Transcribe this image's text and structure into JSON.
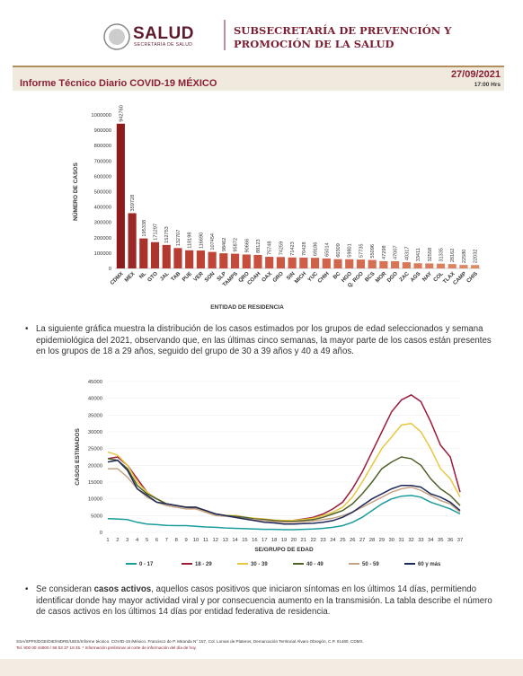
{
  "header": {
    "logo_title": "SALUD",
    "logo_subtitle": "SECRETARÍA DE SALUD",
    "agency": "SUBSECRETARÍA DE PREVENCIÓN Y PROMOCIÓN DE LA SALUD"
  },
  "banner": {
    "title": "Informe Técnico Diario COVID-19 MÉXICO",
    "date": "27/09/2021",
    "time": "17:00 Hrs"
  },
  "paragraph_1": "La siguiente gráfica muestra la distribución de los casos estimados por los grupos de edad seleccionados y semana epidemiológica del 2021, observando que, en las últimas cinco semanas, la mayor parte de los casos están presentes en los grupos de 18 a 29 años, seguido del grupo de 30 a 39 años y 40 a 49 años.",
  "paragraph_2": [
    "Se consideran ",
    "casos activos",
    ", aquellos casos positivos que iniciaron síntomas en los últimos 14 días, permitiendo identificar donde hay mayor actividad viral y por consecuencia aumento en la transmisión. La tabla describe el número de casos activos en los últimos 14 días por entidad federativa de residencia."
  ],
  "footer": [
    "SSA/SPPS/DGE/DIE/INDRE/UIES/Informe técnico. COVID-19 /México. Francisco de P. Miranda N° 157, Col. Lomas de Plateros, Demarcación Territorial Álvaro Obregón, C.P. 01480, CDMX.",
    "Tel. 800 00 44800 / 55 53 37 18 45. * Información preliminar al corte de información del día de hoy."
  ],
  "chart_data": [
    {
      "type": "bar",
      "y_label": "NÚMERO DE CASOS",
      "x_label": "ENTIDAD DE RESIDENCIA",
      "categories": [
        "CDMX",
        "MEX",
        "NL",
        "GTO",
        "JAL",
        "TAB",
        "PUE",
        "VER",
        "SON",
        "SLP",
        "TAMPS",
        "QRO",
        "COAH",
        "OAX",
        "GRO",
        "SIN",
        "MICH",
        "YUC",
        "CHIH",
        "BC",
        "HGO",
        "Q. ROO",
        "BCS",
        "MOR",
        "DGO",
        "ZAC",
        "AGS",
        "NAY",
        "COL",
        "TLAX",
        "CAMP",
        "CHIS"
      ],
      "values": [
        942760,
        359728,
        195338,
        171297,
        152753,
        132707,
        118198,
        116690,
        107454,
        98462,
        95872,
        90666,
        88123,
        75748,
        74259,
        71423,
        70428,
        69186,
        65014,
        60309,
        59801,
        57735,
        55096,
        47298,
        47007,
        40317,
        33411,
        32558,
        31335,
        28162,
        22580,
        22032
      ],
      "colors": [
        "#8e1b1b",
        "#9a2824",
        "#a9322b",
        "#ae352d",
        "#b3392f",
        "#b73c31",
        "#ba3f33",
        "#bd4235",
        "#c04537",
        "#c24839",
        "#c44b3b",
        "#c64e3d",
        "#c8513f",
        "#ca5441",
        "#cc5743",
        "#ce5a45",
        "#cf5d47",
        "#d06049",
        "#d1634b",
        "#d2664d",
        "#d3694f",
        "#d46c51",
        "#d56f53",
        "#d67255",
        "#d77557",
        "#d87859",
        "#d97b5b",
        "#da7e5d",
        "#db815f",
        "#dc8461",
        "#dd8763",
        "#de8a65"
      ],
      "ylim": [
        0,
        1000000
      ],
      "yticks": [
        0,
        100000,
        200000,
        300000,
        400000,
        500000,
        600000,
        700000,
        800000,
        900000,
        1000000
      ],
      "grid": false
    },
    {
      "type": "line",
      "y_label": "CASOS ESTIMADOS",
      "x_label": "SE/GRUPO DE EDAD",
      "x": [
        1,
        2,
        3,
        4,
        5,
        6,
        7,
        8,
        9,
        10,
        11,
        12,
        13,
        14,
        15,
        16,
        17,
        18,
        19,
        20,
        21,
        22,
        23,
        24,
        25,
        26,
        27,
        28,
        29,
        30,
        31,
        32,
        33,
        34,
        35,
        36,
        37
      ],
      "xlim": [
        1,
        37
      ],
      "xticks": [
        1,
        2,
        3,
        4,
        5,
        6,
        7,
        8,
        9,
        10,
        11,
        12,
        13,
        14,
        15,
        16,
        17,
        18,
        19,
        20,
        21,
        22,
        23,
        24,
        25,
        26,
        27,
        28,
        29,
        30,
        31,
        32,
        33,
        34,
        35,
        36,
        37
      ],
      "ylim": [
        0,
        45000
      ],
      "yticks": [
        0,
        5000,
        10000,
        15000,
        20000,
        25000,
        30000,
        35000,
        40000,
        45000
      ],
      "grid": true,
      "legend": "bottom",
      "series": [
        {
          "name": "0 - 17",
          "color": "#1a9c9c",
          "values": [
            4100,
            4000,
            3800,
            3000,
            2500,
            2300,
            2100,
            2000,
            2000,
            1800,
            1600,
            1500,
            1300,
            1200,
            1100,
            1000,
            900,
            900,
            800,
            800,
            900,
            1000,
            1200,
            1500,
            2000,
            3000,
            4500,
            6500,
            8500,
            10000,
            10800,
            11000,
            10500,
            9000,
            8000,
            7000,
            5500
          ]
        },
        {
          "name": "18 - 29",
          "color": "#9b1b3a",
          "values": [
            22000,
            22500,
            20000,
            16000,
            12000,
            10000,
            8500,
            8000,
            7500,
            7000,
            6500,
            5500,
            5000,
            5000,
            4500,
            4000,
            3800,
            3500,
            3500,
            3600,
            4000,
            4500,
            5500,
            7000,
            9000,
            13000,
            18000,
            24000,
            30000,
            36000,
            39500,
            41000,
            39000,
            33000,
            26000,
            22500,
            12000
          ]
        },
        {
          "name": "30 - 39",
          "color": "#e8c840",
          "values": [
            24000,
            23000,
            20000,
            15000,
            12000,
            10000,
            8500,
            8000,
            7500,
            7500,
            6000,
            5500,
            5000,
            5000,
            4500,
            4200,
            4000,
            3700,
            3500,
            3600,
            3800,
            4200,
            5000,
            6000,
            7500,
            10500,
            15000,
            20000,
            25000,
            28500,
            32000,
            32500,
            30000,
            25000,
            19000,
            16000,
            10500
          ]
        },
        {
          "name": "40 - 49",
          "color": "#4f6228",
          "values": [
            22000,
            21500,
            19000,
            14000,
            11500,
            10000,
            8500,
            8000,
            7500,
            7500,
            6500,
            5500,
            5000,
            4800,
            4500,
            4000,
            3800,
            3500,
            3300,
            3300,
            3500,
            3800,
            4500,
            5500,
            6500,
            8500,
            11500,
            15000,
            19000,
            21000,
            22500,
            22000,
            20000,
            16000,
            13000,
            11000,
            8000
          ]
        },
        {
          "name": "50 - 59",
          "color": "#c4a484",
          "values": [
            19000,
            19000,
            16500,
            13000,
            10500,
            9000,
            8000,
            7500,
            7000,
            7000,
            6000,
            5000,
            4800,
            4500,
            4000,
            3800,
            3500,
            3200,
            3000,
            3000,
            3200,
            3400,
            3800,
            4200,
            5000,
            6000,
            7500,
            9000,
            10500,
            12000,
            13000,
            13500,
            12500,
            11000,
            9500,
            8500,
            6000
          ]
        },
        {
          "name": "60 y más",
          "color": "#1f2a5c",
          "values": [
            21000,
            21500,
            18500,
            13000,
            11000,
            9000,
            8500,
            8000,
            7500,
            7500,
            6500,
            5500,
            5000,
            4500,
            4000,
            3500,
            3000,
            2800,
            2500,
            2500,
            2600,
            2700,
            3000,
            3500,
            4500,
            6000,
            8000,
            10000,
            11500,
            13000,
            14000,
            14000,
            13500,
            11500,
            10500,
            9000,
            6500
          ]
        }
      ]
    }
  ]
}
